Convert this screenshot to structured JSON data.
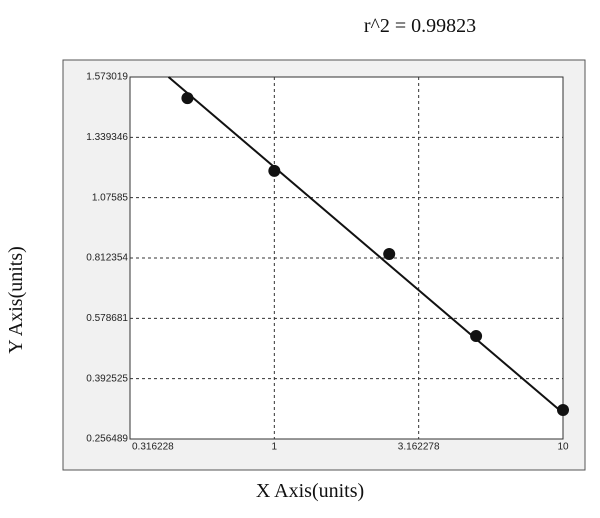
{
  "chart_data": {
    "type": "scatter",
    "title": "r^2 = 0.99823",
    "x_label": "X Axis(units)",
    "y_label": "Y Axis(units)",
    "x_scale": "log",
    "xlim": [
      0.316228,
      10
    ],
    "xticks": [
      0.316228,
      1,
      3.162278,
      10
    ],
    "ylim": [
      0.256489,
      1.573019
    ],
    "yticks": [
      0.256489,
      0.392525,
      0.578681,
      0.812354,
      1.07585,
      1.339346,
      1.573019
    ],
    "grid": true,
    "color": "#111111",
    "x": [
      0.5,
      1,
      2.5,
      5,
      10
    ],
    "values": [
      1.491,
      1.193,
      0.83,
      0.524,
      0.322
    ],
    "fit": {
      "x": [
        0.43,
        10
      ],
      "y": [
        1.573019,
        0.315
      ]
    }
  }
}
